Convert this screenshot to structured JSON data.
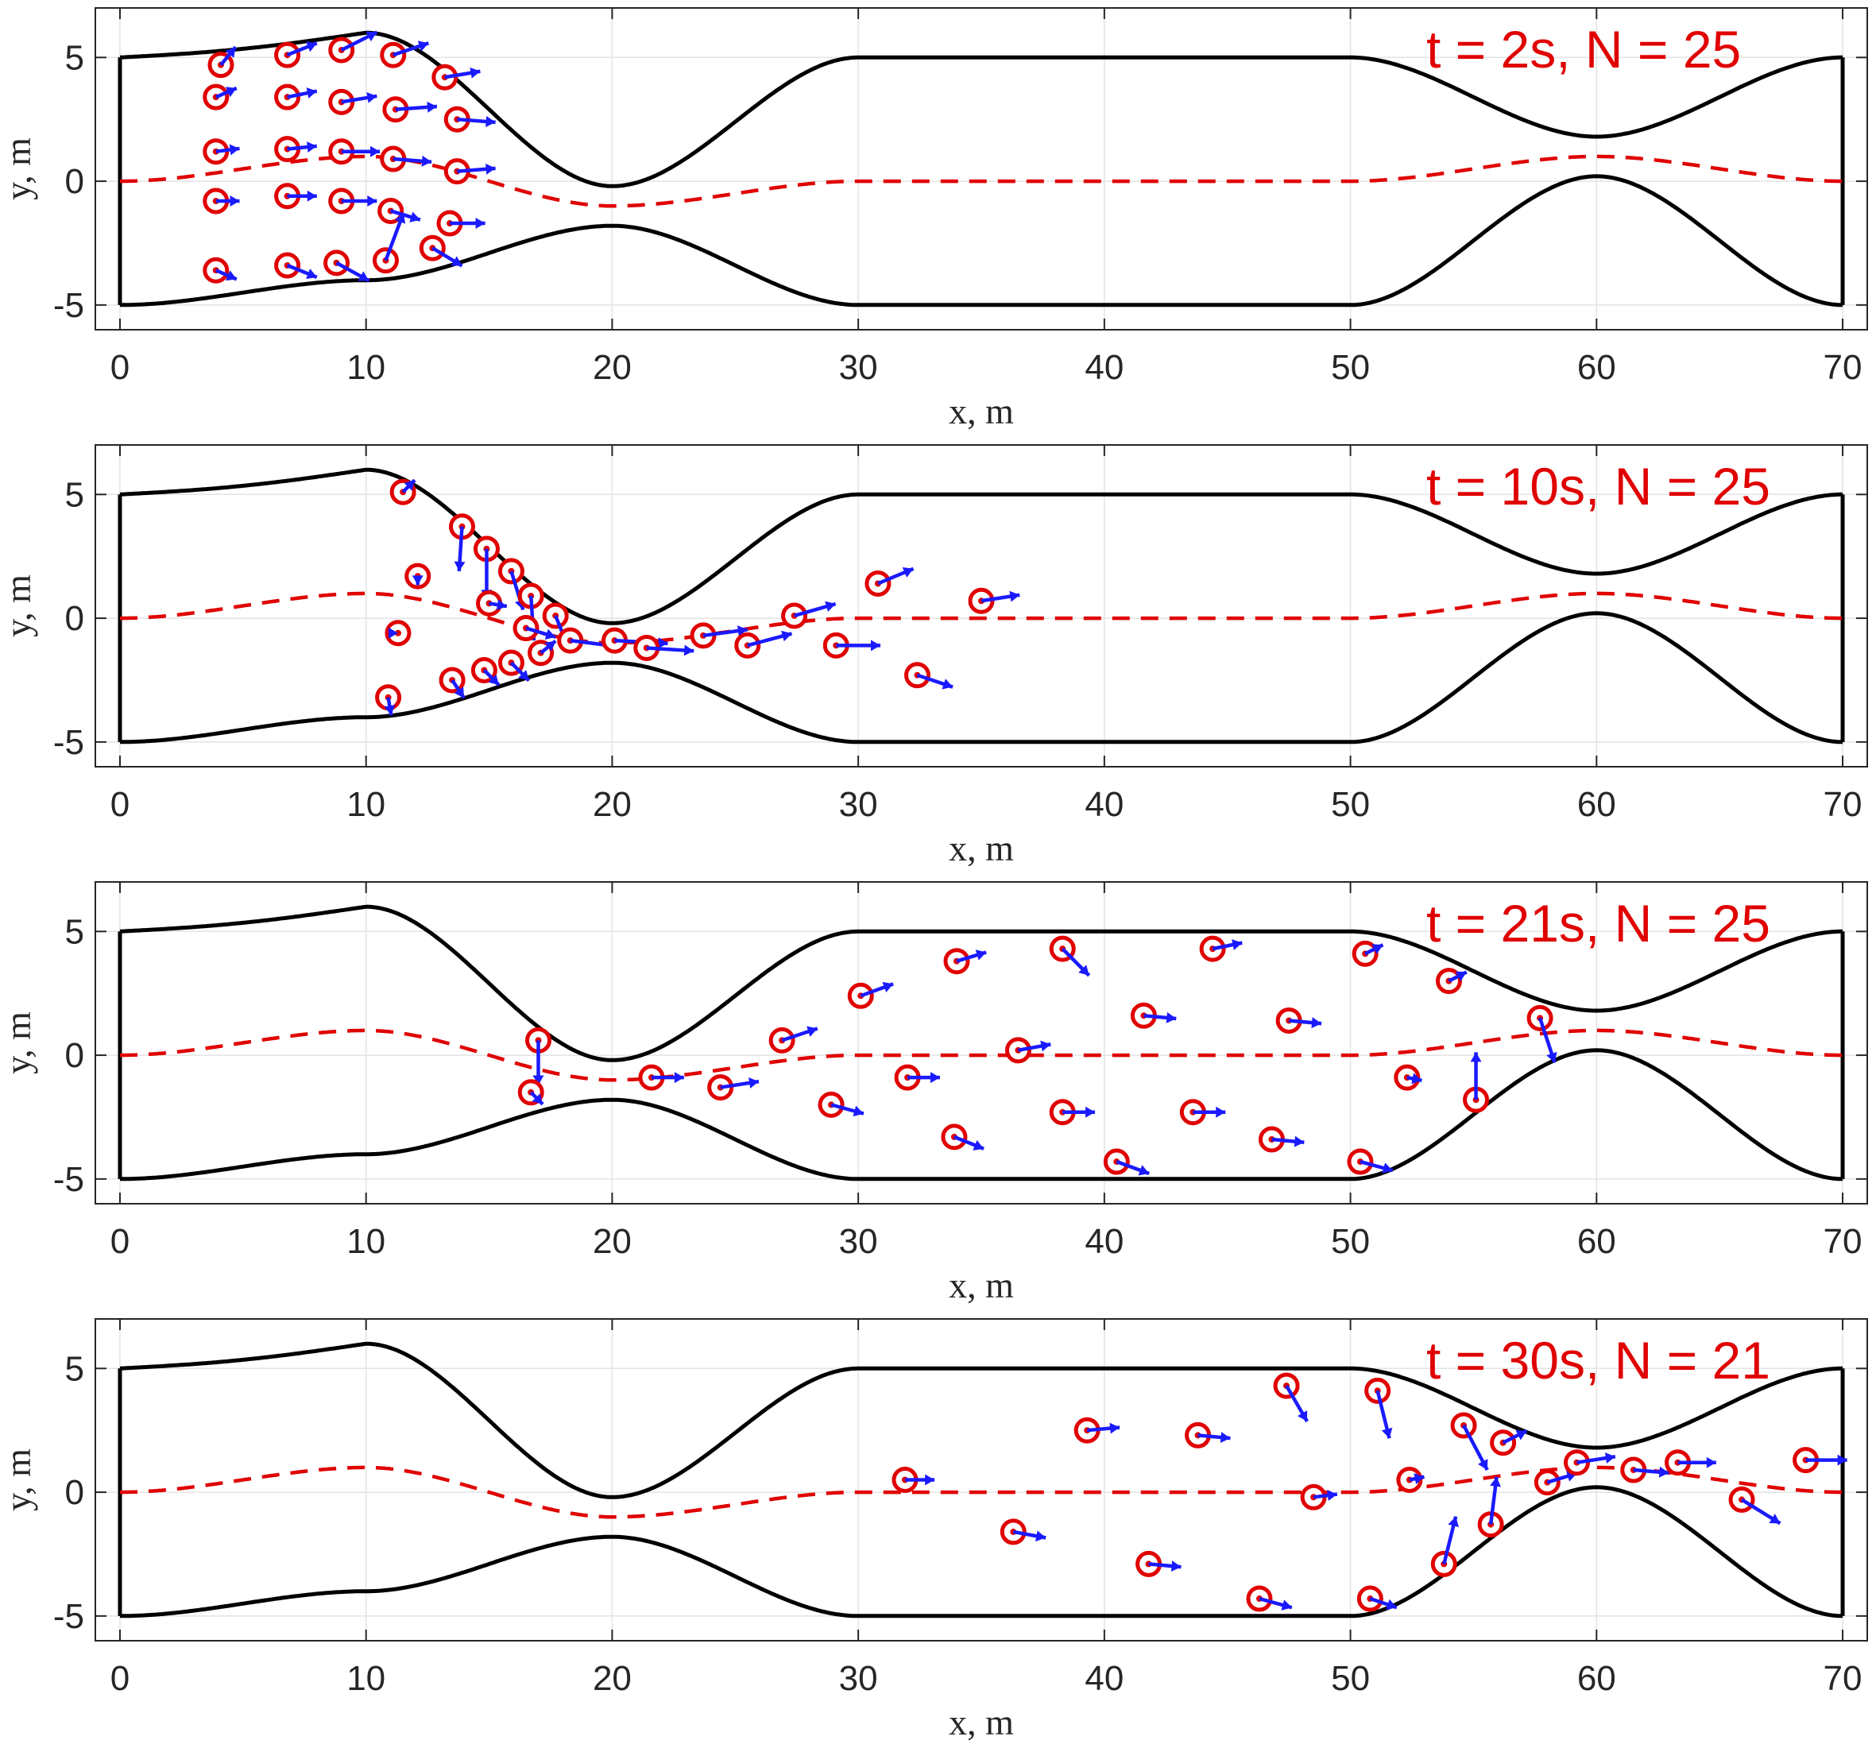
{
  "colors": {
    "wall": "#000000",
    "path": "#e00000",
    "agent": "#e00000",
    "arrow": "#1a1aff",
    "title": "#e00000",
    "grid": "#e3e3e3"
  },
  "chart_data": [
    {
      "type": "scatter",
      "title": "t = 2s, N = 25",
      "xlabel": "x, m",
      "ylabel": "y, m",
      "xlim": [
        -1,
        71
      ],
      "ylim": [
        -6,
        7
      ],
      "xticks": [
        0,
        10,
        20,
        30,
        40,
        50,
        60,
        70
      ],
      "yticks": [
        -5,
        0,
        5
      ],
      "grid": true,
      "title_placement": "top-right",
      "corridor": {
        "right_wall_x": 70,
        "left_wall_x": 0
      },
      "agents": [
        {
          "x": 4.1,
          "y": 4.7,
          "vx": 0.5,
          "vy": 0.6
        },
        {
          "x": 3.9,
          "y": 3.4,
          "vx": 0.7,
          "vy": 0.3
        },
        {
          "x": 3.9,
          "y": 1.2,
          "vx": 0.8,
          "vy": 0.1
        },
        {
          "x": 3.9,
          "y": -0.8,
          "vx": 0.8,
          "vy": 0.0
        },
        {
          "x": 3.9,
          "y": -3.6,
          "vx": 0.7,
          "vy": -0.3
        },
        {
          "x": 6.8,
          "y": 5.1,
          "vx": 1.0,
          "vy": 0.4
        },
        {
          "x": 6.8,
          "y": 3.4,
          "vx": 1.0,
          "vy": 0.2
        },
        {
          "x": 6.8,
          "y": 1.3,
          "vx": 1.0,
          "vy": 0.1
        },
        {
          "x": 6.8,
          "y": -0.6,
          "vx": 1.0,
          "vy": 0.0
        },
        {
          "x": 6.8,
          "y": -3.4,
          "vx": 1.0,
          "vy": -0.4
        },
        {
          "x": 9.0,
          "y": 5.3,
          "vx": 1.2,
          "vy": 0.6
        },
        {
          "x": 9.0,
          "y": 3.2,
          "vx": 1.2,
          "vy": 0.2
        },
        {
          "x": 9.0,
          "y": 1.2,
          "vx": 1.3,
          "vy": 0.0
        },
        {
          "x": 9.0,
          "y": -0.8,
          "vx": 1.2,
          "vy": 0.0
        },
        {
          "x": 8.8,
          "y": -3.3,
          "vx": 1.1,
          "vy": -0.6
        },
        {
          "x": 11.1,
          "y": 5.1,
          "vx": 1.2,
          "vy": 0.4
        },
        {
          "x": 11.2,
          "y": 2.9,
          "vx": 1.4,
          "vy": 0.1
        },
        {
          "x": 11.1,
          "y": 0.9,
          "vx": 1.3,
          "vy": -0.1
        },
        {
          "x": 11.0,
          "y": -1.2,
          "vx": 1.0,
          "vy": -0.3
        },
        {
          "x": 10.8,
          "y": -3.2,
          "vx": 0.6,
          "vy": 1.6
        },
        {
          "x": 13.2,
          "y": 4.2,
          "vx": 1.2,
          "vy": 0.2
        },
        {
          "x": 13.7,
          "y": 2.5,
          "vx": 1.3,
          "vy": -0.1
        },
        {
          "x": 13.7,
          "y": 0.4,
          "vx": 1.3,
          "vy": 0.1
        },
        {
          "x": 13.4,
          "y": -1.7,
          "vx": 1.2,
          "vy": 0.0
        },
        {
          "x": 12.7,
          "y": -2.7,
          "vx": 1.0,
          "vy": -0.6
        }
      ]
    },
    {
      "type": "scatter",
      "title": "t = 10s, N = 25",
      "xlabel": "x, m",
      "ylabel": "y, m",
      "xlim": [
        -1,
        71
      ],
      "ylim": [
        -6,
        7
      ],
      "xticks": [
        0,
        10,
        20,
        30,
        40,
        50,
        60,
        70
      ],
      "yticks": [
        -5,
        0,
        5
      ],
      "grid": true,
      "title_placement": "top-right",
      "corridor": {
        "right_wall_x": 70,
        "left_wall_x": 0
      },
      "agents": [
        {
          "x": 11.5,
          "y": 5.1,
          "vx": 0.4,
          "vy": 0.4
        },
        {
          "x": 13.9,
          "y": 3.7,
          "vx": -0.1,
          "vy": -1.5
        },
        {
          "x": 14.9,
          "y": 2.8,
          "vx": 0.0,
          "vy": -1.7
        },
        {
          "x": 15.9,
          "y": 1.9,
          "vx": 0.4,
          "vy": -1.3
        },
        {
          "x": 12.1,
          "y": 1.7,
          "vx": 0.0,
          "vy": -0.3
        },
        {
          "x": 15.0,
          "y": 0.6,
          "vx": 0.6,
          "vy": -0.1
        },
        {
          "x": 16.7,
          "y": 0.9,
          "vx": 0.1,
          "vy": -1.5
        },
        {
          "x": 17.7,
          "y": 0.1,
          "vx": 0.4,
          "vy": -1.0
        },
        {
          "x": 16.5,
          "y": -0.4,
          "vx": 1.0,
          "vy": -0.3
        },
        {
          "x": 11.3,
          "y": -0.6,
          "vx": 0.0,
          "vy": 0.0
        },
        {
          "x": 18.3,
          "y": -0.9,
          "vx": 1.6,
          "vy": -0.2
        },
        {
          "x": 17.1,
          "y": -1.4,
          "vx": 0.5,
          "vy": 0.4
        },
        {
          "x": 20.1,
          "y": -0.9,
          "vx": 1.8,
          "vy": -0.1
        },
        {
          "x": 21.4,
          "y": -1.2,
          "vx": 1.6,
          "vy": -0.1
        },
        {
          "x": 23.7,
          "y": -0.7,
          "vx": 1.5,
          "vy": 0.2
        },
        {
          "x": 25.5,
          "y": -1.1,
          "vx": 1.5,
          "vy": 0.4
        },
        {
          "x": 27.4,
          "y": 0.1,
          "vx": 1.4,
          "vy": 0.4
        },
        {
          "x": 29.1,
          "y": -1.1,
          "vx": 1.5,
          "vy": 0.0
        },
        {
          "x": 30.8,
          "y": 1.4,
          "vx": 1.2,
          "vy": 0.5
        },
        {
          "x": 35.0,
          "y": 0.7,
          "vx": 1.3,
          "vy": 0.2
        },
        {
          "x": 32.4,
          "y": -2.3,
          "vx": 1.2,
          "vy": -0.4
        },
        {
          "x": 15.9,
          "y": -1.8,
          "vx": 0.6,
          "vy": -0.6
        },
        {
          "x": 14.8,
          "y": -2.1,
          "vx": 0.5,
          "vy": -0.5
        },
        {
          "x": 13.5,
          "y": -2.5,
          "vx": 0.4,
          "vy": -0.6
        },
        {
          "x": 10.9,
          "y": -3.2,
          "vx": 0.1,
          "vy": -0.6
        }
      ]
    },
    {
      "type": "scatter",
      "title": "t = 21s, N = 25",
      "xlabel": "x, m",
      "ylabel": "y, m",
      "xlim": [
        -1,
        71
      ],
      "ylim": [
        -6,
        7
      ],
      "xticks": [
        0,
        10,
        20,
        30,
        40,
        50,
        60,
        70
      ],
      "yticks": [
        -5,
        0,
        5
      ],
      "grid": true,
      "title_placement": "top-right",
      "corridor": {
        "right_wall_x": 70,
        "left_wall_x": 0
      },
      "agents": [
        {
          "x": 17.0,
          "y": 0.6,
          "vx": 0.0,
          "vy": -1.5
        },
        {
          "x": 16.7,
          "y": -1.5,
          "vx": 0.4,
          "vy": -0.4
        },
        {
          "x": 21.6,
          "y": -0.9,
          "vx": 1.1,
          "vy": 0.0
        },
        {
          "x": 24.4,
          "y": -1.3,
          "vx": 1.3,
          "vy": 0.2
        },
        {
          "x": 26.9,
          "y": 0.6,
          "vx": 1.2,
          "vy": 0.4
        },
        {
          "x": 28.9,
          "y": -2.0,
          "vx": 1.1,
          "vy": -0.3
        },
        {
          "x": 30.1,
          "y": 2.4,
          "vx": 1.1,
          "vy": 0.4
        },
        {
          "x": 32.0,
          "y": -0.9,
          "vx": 1.1,
          "vy": 0.0
        },
        {
          "x": 34.0,
          "y": 3.8,
          "vx": 1.0,
          "vy": 0.3
        },
        {
          "x": 33.9,
          "y": -3.3,
          "vx": 1.0,
          "vy": -0.4
        },
        {
          "x": 36.5,
          "y": 0.2,
          "vx": 1.1,
          "vy": 0.2
        },
        {
          "x": 38.3,
          "y": 4.3,
          "vx": 0.9,
          "vy": -0.9
        },
        {
          "x": 38.3,
          "y": -2.3,
          "vx": 1.1,
          "vy": 0.0
        },
        {
          "x": 40.5,
          "y": -4.3,
          "vx": 1.1,
          "vy": -0.4
        },
        {
          "x": 41.6,
          "y": 1.6,
          "vx": 1.1,
          "vy": -0.1
        },
        {
          "x": 43.6,
          "y": -2.3,
          "vx": 1.1,
          "vy": 0.0
        },
        {
          "x": 44.4,
          "y": 4.3,
          "vx": 1.0,
          "vy": 0.2
        },
        {
          "x": 46.8,
          "y": -3.4,
          "vx": 1.1,
          "vy": -0.1
        },
        {
          "x": 47.5,
          "y": 1.4,
          "vx": 1.1,
          "vy": -0.1
        },
        {
          "x": 50.4,
          "y": -4.3,
          "vx": 1.1,
          "vy": -0.3
        },
        {
          "x": 50.6,
          "y": 4.1,
          "vx": 0.6,
          "vy": 0.3
        },
        {
          "x": 52.3,
          "y": -0.9,
          "vx": 0.5,
          "vy": -0.1
        },
        {
          "x": 54.0,
          "y": 3.0,
          "vx": 0.6,
          "vy": 0.3
        },
        {
          "x": 55.1,
          "y": -1.8,
          "vx": 0.0,
          "vy": 1.6
        },
        {
          "x": 57.7,
          "y": 1.5,
          "vx": 0.5,
          "vy": -1.5
        }
      ]
    },
    {
      "type": "scatter",
      "title": "t = 30s, N = 21",
      "xlabel": "x, m",
      "ylabel": "y, m",
      "xlim": [
        -1,
        71
      ],
      "ylim": [
        -6,
        7
      ],
      "xticks": [
        0,
        10,
        20,
        30,
        40,
        50,
        60,
        70
      ],
      "yticks": [
        -5,
        0,
        5
      ],
      "grid": true,
      "title_placement": "top-right",
      "corridor": {
        "right_wall_x": 70,
        "left_wall_x": 0
      },
      "agents": [
        {
          "x": 31.9,
          "y": 0.5,
          "vx": 1.0,
          "vy": 0.0
        },
        {
          "x": 36.3,
          "y": -1.6,
          "vx": 1.1,
          "vy": -0.2
        },
        {
          "x": 39.3,
          "y": 2.5,
          "vx": 1.1,
          "vy": 0.1
        },
        {
          "x": 41.8,
          "y": -2.9,
          "vx": 1.1,
          "vy": -0.1
        },
        {
          "x": 43.8,
          "y": 2.3,
          "vx": 1.1,
          "vy": -0.1
        },
        {
          "x": 46.3,
          "y": -4.3,
          "vx": 1.1,
          "vy": -0.3
        },
        {
          "x": 47.4,
          "y": 4.3,
          "vx": 0.7,
          "vy": -1.2
        },
        {
          "x": 48.5,
          "y": -0.2,
          "vx": 0.8,
          "vy": 0.1
        },
        {
          "x": 50.8,
          "y": -4.3,
          "vx": 0.9,
          "vy": -0.3
        },
        {
          "x": 51.1,
          "y": 4.1,
          "vx": 0.4,
          "vy": -1.6
        },
        {
          "x": 52.4,
          "y": 0.5,
          "vx": 0.5,
          "vy": 0.1
        },
        {
          "x": 53.8,
          "y": -2.9,
          "vx": 0.4,
          "vy": 1.6
        },
        {
          "x": 54.6,
          "y": 2.7,
          "vx": 0.8,
          "vy": -1.5
        },
        {
          "x": 55.7,
          "y": -1.3,
          "vx": 0.2,
          "vy": 1.6
        },
        {
          "x": 56.2,
          "y": 2.0,
          "vx": 0.8,
          "vy": 0.4
        },
        {
          "x": 58.0,
          "y": 0.4,
          "vx": 1.0,
          "vy": 0.3
        },
        {
          "x": 59.2,
          "y": 1.2,
          "vx": 1.3,
          "vy": 0.2
        },
        {
          "x": 61.5,
          "y": 0.9,
          "vx": 1.2,
          "vy": -0.1
        },
        {
          "x": 63.3,
          "y": 1.2,
          "vx": 1.3,
          "vy": 0.0
        },
        {
          "x": 65.9,
          "y": -0.3,
          "vx": 1.3,
          "vy": -0.8
        },
        {
          "x": 68.5,
          "y": 1.3,
          "vx": 1.4,
          "vy": 0.0
        }
      ]
    }
  ]
}
